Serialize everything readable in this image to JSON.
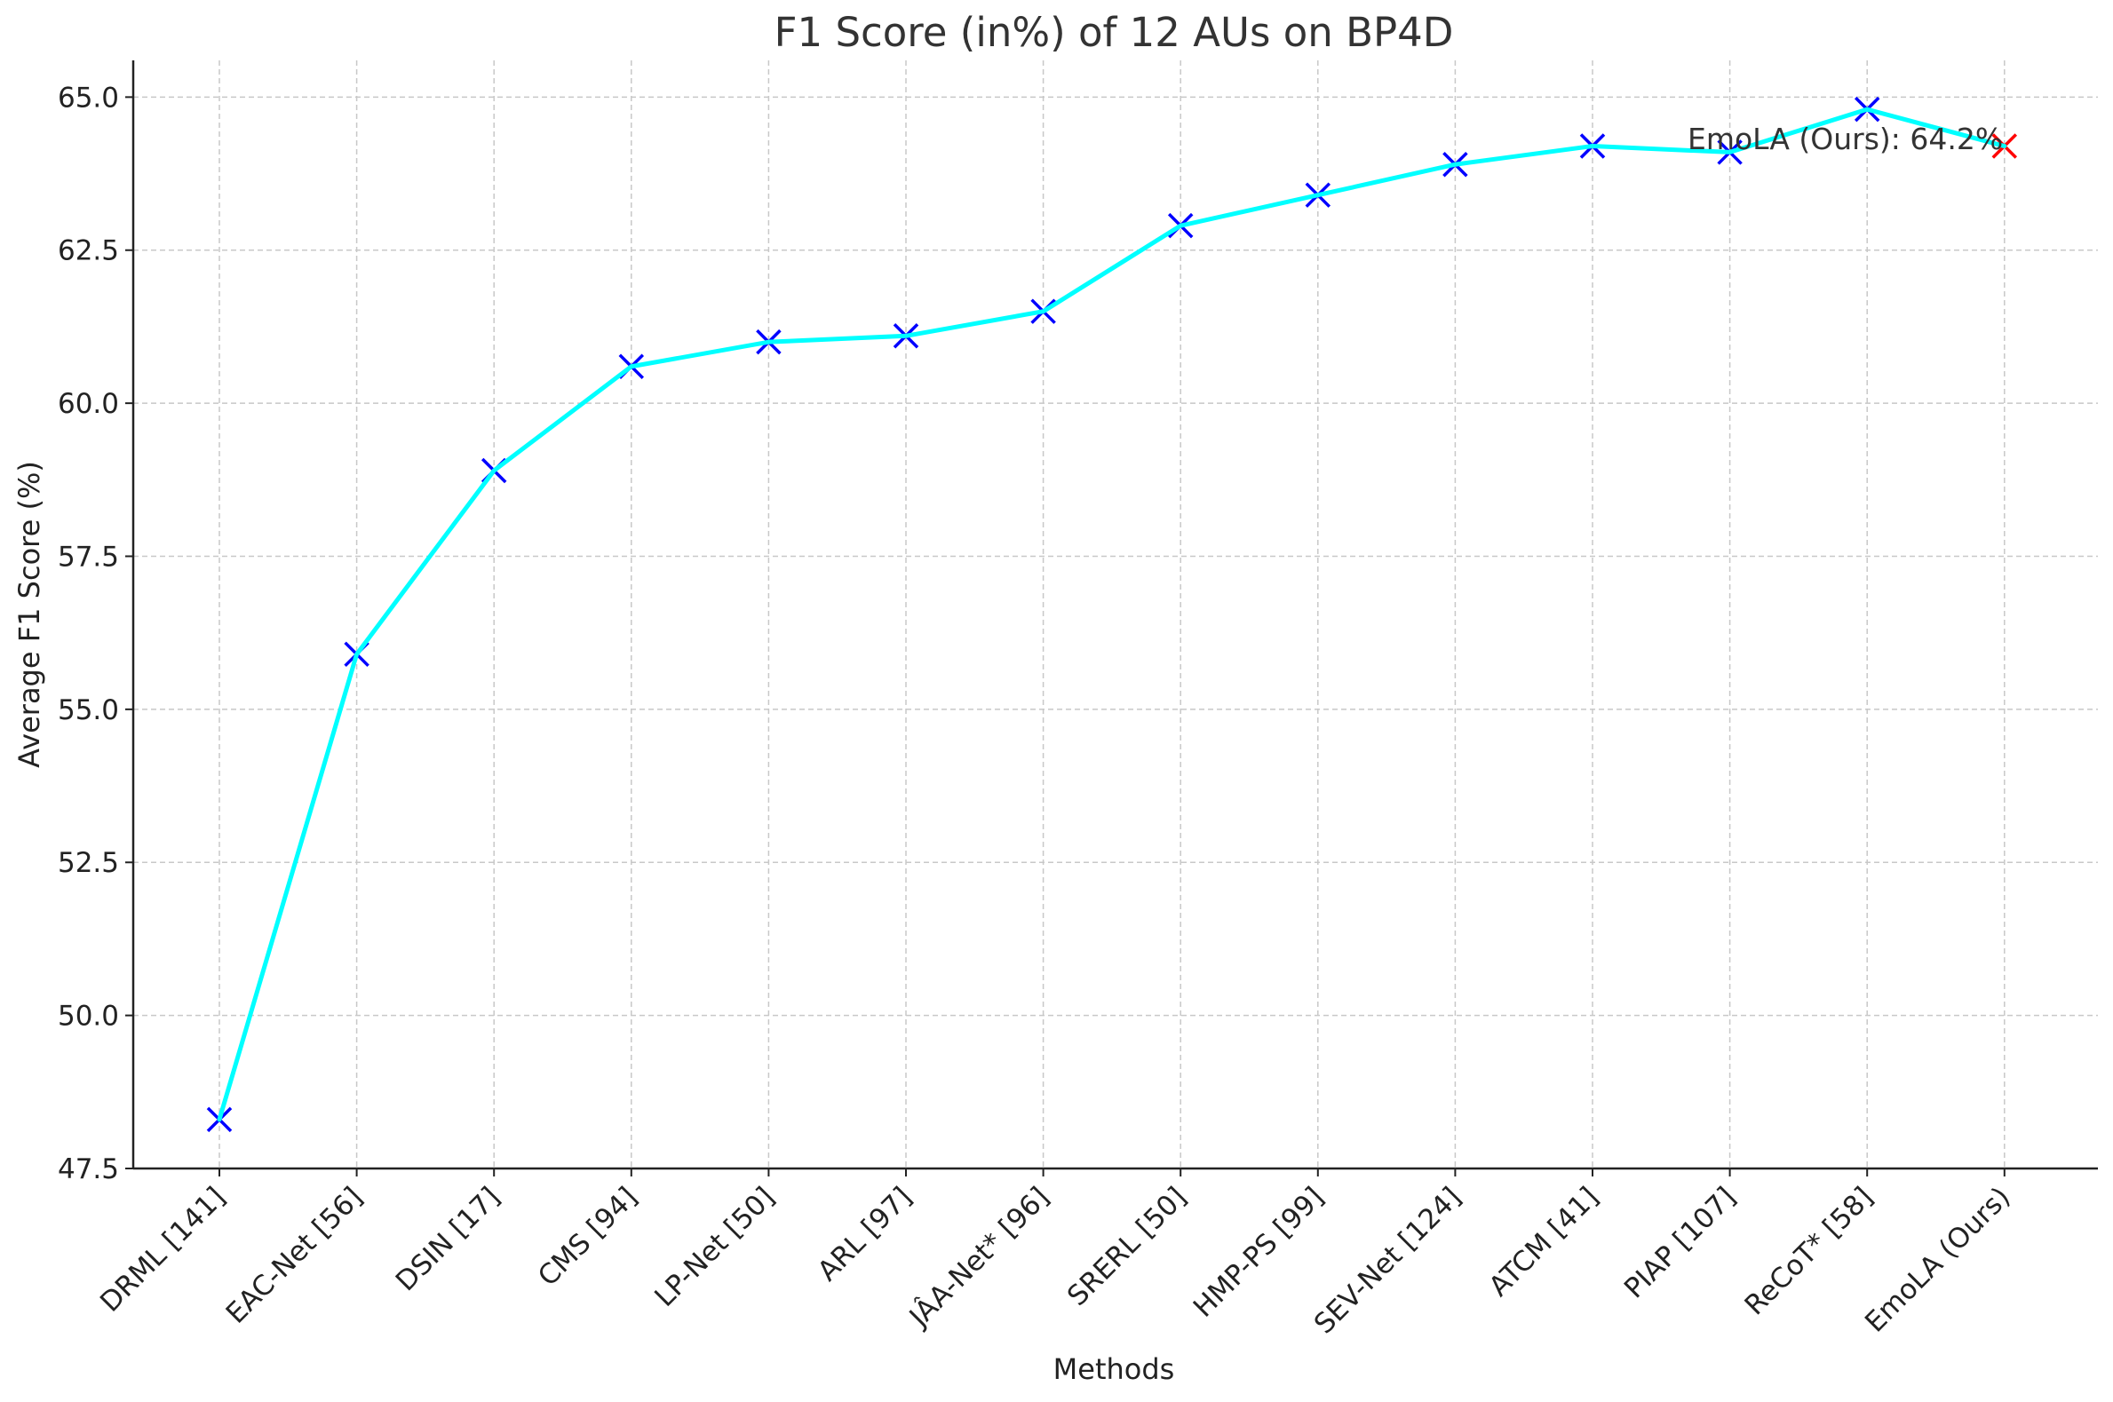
{
  "chart_data": {
    "type": "line",
    "title": "F1 Score (in%) of 12 AUs on BP4D",
    "xlabel": "Methods",
    "ylabel": "Average F1 Score (%)",
    "ylim": [
      47.5,
      65.6
    ],
    "yticks": [
      "47.5",
      "50.0",
      "52.5",
      "55.0",
      "57.5",
      "60.0",
      "62.5",
      "65.0"
    ],
    "grid": true,
    "categories": [
      "DRML [141]",
      "EAC-Net [56]",
      "DSIN [17]",
      "CMS [94]",
      "LP-Net [50]",
      "ARL [97]",
      "JÂA-Net* [96]",
      "SRERL [50]",
      "HMP-PS [99]",
      "SEV-Net [124]",
      "ATCM [41]",
      "PIAP [107]",
      "ReCoT* [58]",
      "EmoLA (Ours)"
    ],
    "series": [
      {
        "values": [
          48.3,
          55.9,
          58.9,
          60.6,
          61.0,
          61.1,
          61.5,
          62.9,
          63.4,
          63.9,
          64.2,
          64.1,
          64.8,
          64.2
        ]
      }
    ],
    "line_color": "#00ffff",
    "marker_color": "#0000ff",
    "highlight_marker_color": "#ff0000",
    "highlight_index": 13,
    "annotation": "EmoLA (Ours): 64.2%"
  }
}
